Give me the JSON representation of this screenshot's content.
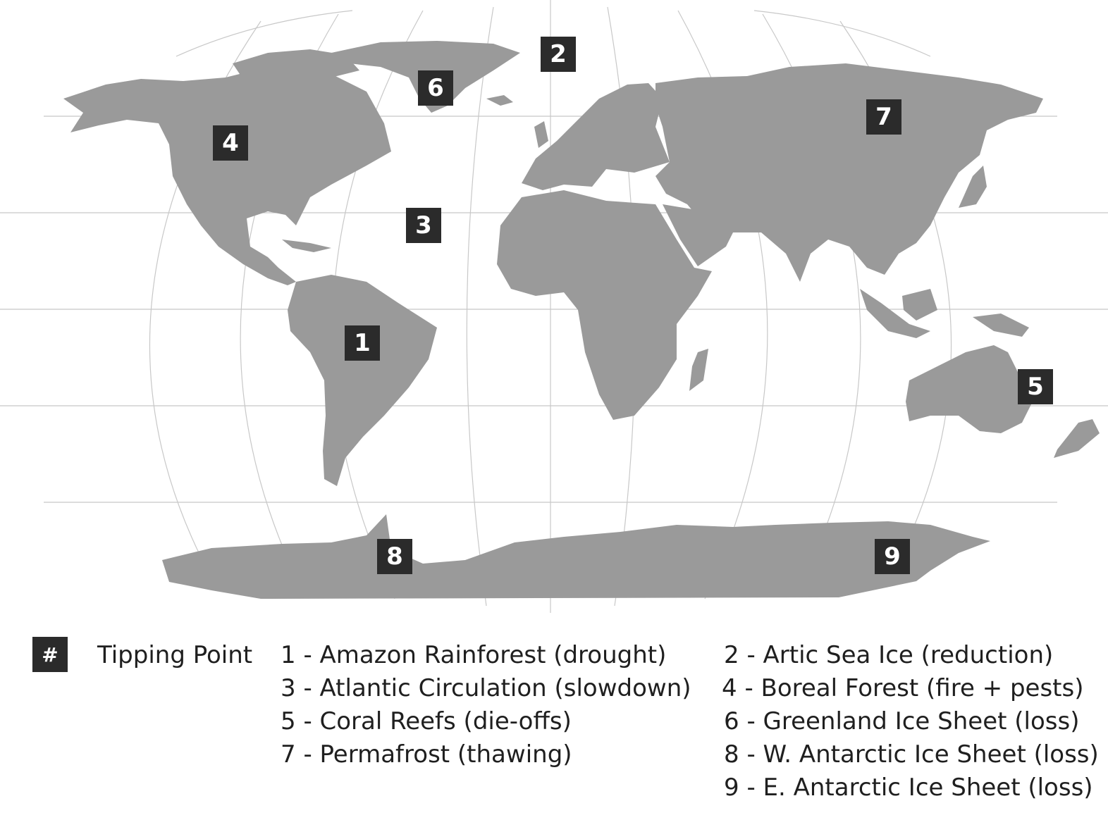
{
  "colors": {
    "land": "#9a9a9a",
    "marker_bg": "#2b2b2b",
    "grid": "#c8c8c8",
    "text": "#1f1f1f"
  },
  "markers": [
    {
      "label": "1"
    },
    {
      "label": "2"
    },
    {
      "label": "3"
    },
    {
      "label": "4"
    },
    {
      "label": "5"
    },
    {
      "label": "6"
    },
    {
      "label": "7"
    },
    {
      "label": "8"
    },
    {
      "label": "9"
    }
  ],
  "legend": {
    "key_symbol": "#",
    "title": "Tipping Point",
    "items": [
      "1 - Amazon Rainforest (drought)",
      "2 - Artic Sea Ice (reduction)",
      "3 - Atlantic Circulation (slowdown)",
      "4 - Boreal Forest (fire + pests)",
      "5 - Coral Reefs (die-offs)",
      "6 - Greenland Ice Sheet (loss)",
      "7 - Permafrost (thawing)",
      "8 - W. Antarctic Ice Sheet (loss)",
      "9 - E. Antarctic Ice Sheet (loss)"
    ]
  }
}
